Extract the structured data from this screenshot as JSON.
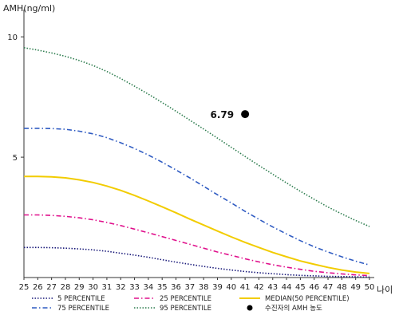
{
  "chart_data": {
    "type": "line",
    "ylabel": "AMH(ng/ml)",
    "xlabel": "나이",
    "x": [
      25,
      26,
      27,
      28,
      29,
      30,
      31,
      32,
      33,
      34,
      35,
      36,
      37,
      38,
      39,
      40,
      41,
      42,
      43,
      44,
      45,
      46,
      47,
      48,
      49,
      50
    ],
    "xlim": [
      25,
      50
    ],
    "ylim": [
      0,
      11
    ],
    "yticks": [
      5,
      10
    ],
    "series": [
      {
        "name": "5 PERCENTILE",
        "color": "#1a1a7a",
        "style": "dotted",
        "values": [
          1.25,
          1.25,
          1.24,
          1.22,
          1.19,
          1.15,
          1.09,
          1.01,
          0.93,
          0.84,
          0.74,
          0.64,
          0.55,
          0.46,
          0.38,
          0.31,
          0.25,
          0.2,
          0.16,
          0.12,
          0.09,
          0.07,
          0.05,
          0.04,
          0.03,
          0.02
        ]
      },
      {
        "name": "25 PERCENTILE",
        "color": "#e0108c",
        "style": "dashdot",
        "values": [
          2.6,
          2.6,
          2.58,
          2.54,
          2.48,
          2.4,
          2.29,
          2.16,
          2.01,
          1.86,
          1.7,
          1.54,
          1.38,
          1.22,
          1.06,
          0.92,
          0.78,
          0.65,
          0.53,
          0.43,
          0.34,
          0.26,
          0.2,
          0.15,
          0.11,
          0.08
        ]
      },
      {
        "name": "MEDIAN(50 PERCENTILE)",
        "color": "#f2cc00",
        "style": "solid",
        "values": [
          4.2,
          4.2,
          4.18,
          4.14,
          4.06,
          3.95,
          3.8,
          3.62,
          3.41,
          3.18,
          2.94,
          2.69,
          2.43,
          2.18,
          1.93,
          1.69,
          1.46,
          1.25,
          1.04,
          0.86,
          0.69,
          0.55,
          0.42,
          0.31,
          0.23,
          0.17
        ]
      },
      {
        "name": "75 PERCENTILE",
        "color": "#2f5bc2",
        "style": "dashdot",
        "values": [
          6.2,
          6.2,
          6.19,
          6.16,
          6.08,
          5.97,
          5.81,
          5.6,
          5.36,
          5.09,
          4.79,
          4.47,
          4.14,
          3.79,
          3.44,
          3.1,
          2.75,
          2.42,
          2.1,
          1.81,
          1.53,
          1.28,
          1.06,
          0.86,
          0.68,
          0.52
        ]
      },
      {
        "name": "95 PERCENTILE",
        "color": "#2e7d4f",
        "style": "dotted",
        "values": [
          9.55,
          9.45,
          9.33,
          9.19,
          9.02,
          8.81,
          8.56,
          8.27,
          7.95,
          7.62,
          7.27,
          6.91,
          6.54,
          6.17,
          5.79,
          5.41,
          5.03,
          4.66,
          4.29,
          3.93,
          3.58,
          3.25,
          2.93,
          2.64,
          2.37,
          2.12
        ]
      }
    ],
    "patient_point": {
      "label": "수진자의 AMH 농도",
      "x": 41,
      "y": 6.79,
      "display": "6.79",
      "color": "#000000"
    },
    "legend_layout": [
      [
        "5 PERCENTILE",
        "25 PERCENTILE",
        "MEDIAN(50 PERCENTILE)"
      ],
      [
        "75 PERCENTILE",
        "95 PERCENTILE",
        "수진자의 AMH 농도"
      ]
    ],
    "grid": false,
    "legend_position": "bottom"
  }
}
